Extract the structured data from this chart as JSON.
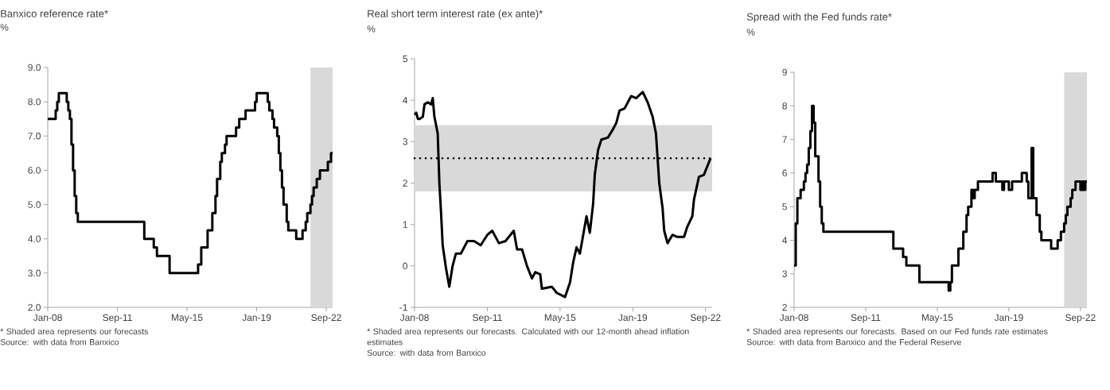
{
  "chart_data": [
    {
      "type": "step",
      "title": "Banxico reference rate*",
      "ylabel": "%",
      "x": [
        "2008-01",
        "2008-06",
        "2008-07",
        "2008-08",
        "2009-01",
        "2009-02",
        "2009-03",
        "2009-04",
        "2009-05",
        "2009-06",
        "2009-07",
        "2009-08",
        "2013-02",
        "2013-08",
        "2013-10",
        "2014-06",
        "2015-12",
        "2016-02",
        "2016-06",
        "2016-09",
        "2016-11",
        "2016-12",
        "2017-02",
        "2017-03",
        "2017-05",
        "2017-06",
        "2017-12",
        "2018-02",
        "2018-06",
        "2018-12",
        "2019-01",
        "2019-08",
        "2019-09",
        "2019-11",
        "2019-12",
        "2020-02",
        "2020-03",
        "2020-04",
        "2020-05",
        "2020-06",
        "2020-08",
        "2020-09",
        "2021-02",
        "2021-06",
        "2021-08",
        "2021-09",
        "2021-11",
        "2021-12",
        "2022-01",
        "2022-03",
        "2022-05",
        "2022-10",
        "2022-12",
        "2023-01"
      ],
      "values": [
        7.5,
        7.75,
        8.0,
        8.25,
        8.0,
        7.75,
        7.5,
        6.75,
        6.0,
        5.25,
        4.75,
        4.5,
        4.0,
        3.75,
        3.5,
        3.0,
        3.25,
        3.75,
        4.25,
        4.75,
        5.25,
        5.75,
        6.25,
        6.5,
        6.75,
        7.0,
        7.25,
        7.5,
        7.75,
        8.0,
        8.25,
        8.0,
        7.75,
        7.5,
        7.25,
        7.0,
        6.5,
        6.0,
        5.5,
        5.0,
        4.5,
        4.25,
        4.0,
        4.25,
        4.5,
        4.75,
        5.0,
        5.25,
        5.5,
        5.75,
        6.0,
        6.25,
        6.5,
        6.5
      ],
      "color": "#000000",
      "xlim": [
        "2008-01",
        "2023-01"
      ],
      "ylim": [
        2,
        9
      ],
      "xticks": [
        {
          "value": "2008-01",
          "label": "Jan-08"
        },
        {
          "value": "2011-09",
          "label": "Sep-11"
        },
        {
          "value": "2015-05",
          "label": "May-15"
        },
        {
          "value": "2019-01",
          "label": "Jan-19"
        },
        {
          "value": "2022-09",
          "label": "Sep-22"
        }
      ],
      "yticks": [
        {
          "value": 2,
          "label": "2.0"
        },
        {
          "value": 3,
          "label": "3.0"
        },
        {
          "value": 4,
          "label": "4.0"
        },
        {
          "value": 5,
          "label": "5.0"
        },
        {
          "value": 6,
          "label": "6.0"
        },
        {
          "value": 7,
          "label": "7.0"
        },
        {
          "value": 8,
          "label": "8.0"
        },
        {
          "value": 9,
          "label": "9.0"
        }
      ],
      "bands": [
        {
          "axis": "x",
          "from": "2021-11",
          "to": "2023-01",
          "color": "#d9d9d9"
        }
      ],
      "annotations": [
        "* Shaded area represents our forecasts",
        "Source: with data from Banxico"
      ]
    },
    {
      "type": "line",
      "title": "Real short term interest rate (ex ante)*",
      "ylabel": "%",
      "x": [
        "2008-01",
        "2008-02",
        "2008-03",
        "2008-04",
        "2008-06",
        "2008-07",
        "2008-09",
        "2008-11",
        "2008-12",
        "2009-01",
        "2009-03",
        "2009-04",
        "2009-05",
        "2009-06",
        "2009-08",
        "2009-10",
        "2009-12",
        "2010-02",
        "2010-05",
        "2010-09",
        "2011-01",
        "2011-05",
        "2011-09",
        "2011-12",
        "2012-04",
        "2012-08",
        "2013-01",
        "2013-03",
        "2013-06",
        "2013-09",
        "2013-12",
        "2014-02",
        "2014-05",
        "2014-06",
        "2014-12",
        "2015-03",
        "2015-08",
        "2015-11",
        "2016-01",
        "2016-03",
        "2016-05",
        "2016-07",
        "2016-09",
        "2016-11",
        "2017-01",
        "2017-02",
        "2017-04",
        "2017-06",
        "2017-10",
        "2018-01",
        "2018-03",
        "2018-05",
        "2018-08",
        "2018-12",
        "2019-03",
        "2019-07",
        "2019-10",
        "2020-01",
        "2020-03",
        "2020-05",
        "2020-07",
        "2020-08",
        "2020-10",
        "2021-01",
        "2021-04",
        "2021-08",
        "2021-10",
        "2022-01",
        "2022-02",
        "2022-05",
        "2022-08",
        "2022-10",
        "2022-12"
      ],
      "values": [
        3.65,
        3.7,
        3.55,
        3.55,
        3.6,
        3.9,
        3.95,
        3.9,
        4.05,
        3.6,
        3.2,
        2.0,
        1.3,
        0.5,
        -0.05,
        -0.5,
        0.0,
        0.3,
        0.3,
        0.6,
        0.6,
        0.5,
        0.75,
        0.85,
        0.55,
        0.6,
        0.85,
        0.4,
        0.4,
        0.0,
        -0.3,
        -0.15,
        -0.2,
        -0.55,
        -0.5,
        -0.65,
        -0.75,
        -0.4,
        0.1,
        0.45,
        0.3,
        0.75,
        1.2,
        0.8,
        1.5,
        2.2,
        2.8,
        3.05,
        3.1,
        3.3,
        3.45,
        3.75,
        3.8,
        4.1,
        4.05,
        4.2,
        3.95,
        3.6,
        3.2,
        2.0,
        1.4,
        0.85,
        0.55,
        0.75,
        0.7,
        0.7,
        0.95,
        1.2,
        1.6,
        2.15,
        2.2,
        2.4,
        2.6
      ],
      "color": "#000000",
      "xlim": [
        "2008-01",
        "2023-01"
      ],
      "ylim": [
        -1,
        5
      ],
      "xticks": [
        {
          "value": "2008-01",
          "label": "Jan-08"
        },
        {
          "value": "2011-09",
          "label": "Sep-11"
        },
        {
          "value": "2015-05",
          "label": "May-15"
        },
        {
          "value": "2019-01",
          "label": "Jan-19"
        },
        {
          "value": "2022-09",
          "label": "Sep-22"
        }
      ],
      "yticks": [
        -1,
        0,
        1,
        2,
        3,
        4,
        5
      ],
      "bands": [
        {
          "axis": "y",
          "from": 1.8,
          "to": 3.4,
          "color": "#d9d9d9"
        }
      ],
      "ref_lines": [
        {
          "axis": "y",
          "value": 2.6,
          "color": "#000000",
          "line_style": "dotted"
        }
      ],
      "annotations": [
        "* Shaded area represents our forecasts. Calculated with our 12-month ahead inflation estimates",
        "Source: with data from Banxico"
      ]
    },
    {
      "type": "step",
      "title": "Spread with the Fed funds rate*",
      "ylabel": "%",
      "x": [
        "2008-01",
        "2008-02",
        "2008-03",
        "2008-05",
        "2008-07",
        "2008-08",
        "2008-09",
        "2008-10",
        "2008-11",
        "2008-12",
        "2009-01",
        "2009-02",
        "2009-04",
        "2009-05",
        "2009-06",
        "2009-07",
        "2013-02",
        "2013-08",
        "2013-10",
        "2014-06",
        "2015-12",
        "2016-01",
        "2016-02",
        "2016-06",
        "2016-09",
        "2016-11",
        "2016-12",
        "2017-02",
        "2017-03",
        "2017-04",
        "2017-06",
        "2018-03",
        "2018-05",
        "2018-09",
        "2018-10",
        "2019-01",
        "2019-03",
        "2019-09",
        "2019-12",
        "2020-01",
        "2020-03",
        "2020-04",
        "2020-06",
        "2020-08",
        "2020-09",
        "2021-03",
        "2021-07",
        "2021-09",
        "2021-11",
        "2021-12",
        "2022-01",
        "2022-03",
        "2022-04",
        "2022-06",
        "2022-09",
        "2022-10",
        "2022-11",
        "2022-12",
        "2023-01"
      ],
      "values": [
        3.25,
        4.5,
        5.25,
        5.5,
        5.75,
        6.0,
        6.25,
        6.75,
        7.25,
        8.0,
        7.5,
        6.5,
        5.75,
        5.0,
        4.5,
        4.25,
        3.75,
        3.5,
        3.25,
        2.75,
        2.5,
        2.75,
        3.25,
        3.75,
        4.25,
        4.75,
        5.0,
        5.5,
        5.25,
        5.5,
        5.75,
        6.0,
        5.75,
        5.5,
        5.75,
        5.5,
        5.75,
        6.0,
        5.75,
        5.25,
        6.75,
        5.25,
        4.75,
        4.25,
        4.0,
        3.75,
        4.0,
        4.25,
        4.5,
        4.75,
        5.0,
        5.25,
        5.5,
        5.75,
        5.5,
        5.75,
        5.5,
        5.75,
        5.75
      ],
      "color": "#000000",
      "xlim": [
        "2008-01",
        "2023-01"
      ],
      "ylim": [
        2,
        9
      ],
      "xticks": [
        {
          "value": "2008-01",
          "label": "Jan-08"
        },
        {
          "value": "2011-09",
          "label": "Sep-11"
        },
        {
          "value": "2015-05",
          "label": "May-15"
        },
        {
          "value": "2019-01",
          "label": "Jan-19"
        },
        {
          "value": "2022-09",
          "label": "Sep-22"
        }
      ],
      "yticks": [
        2,
        3,
        4,
        5,
        6,
        7,
        8,
        9
      ],
      "bands": [
        {
          "axis": "x",
          "from": "2021-11",
          "to": "2023-01",
          "color": "#d9d9d9"
        }
      ],
      "annotations": [
        "* Shaded area represents our forecasts. Based on our Fed funds rate estimates",
        "Source: with data from Banxico and the Federal Reserve"
      ]
    }
  ]
}
